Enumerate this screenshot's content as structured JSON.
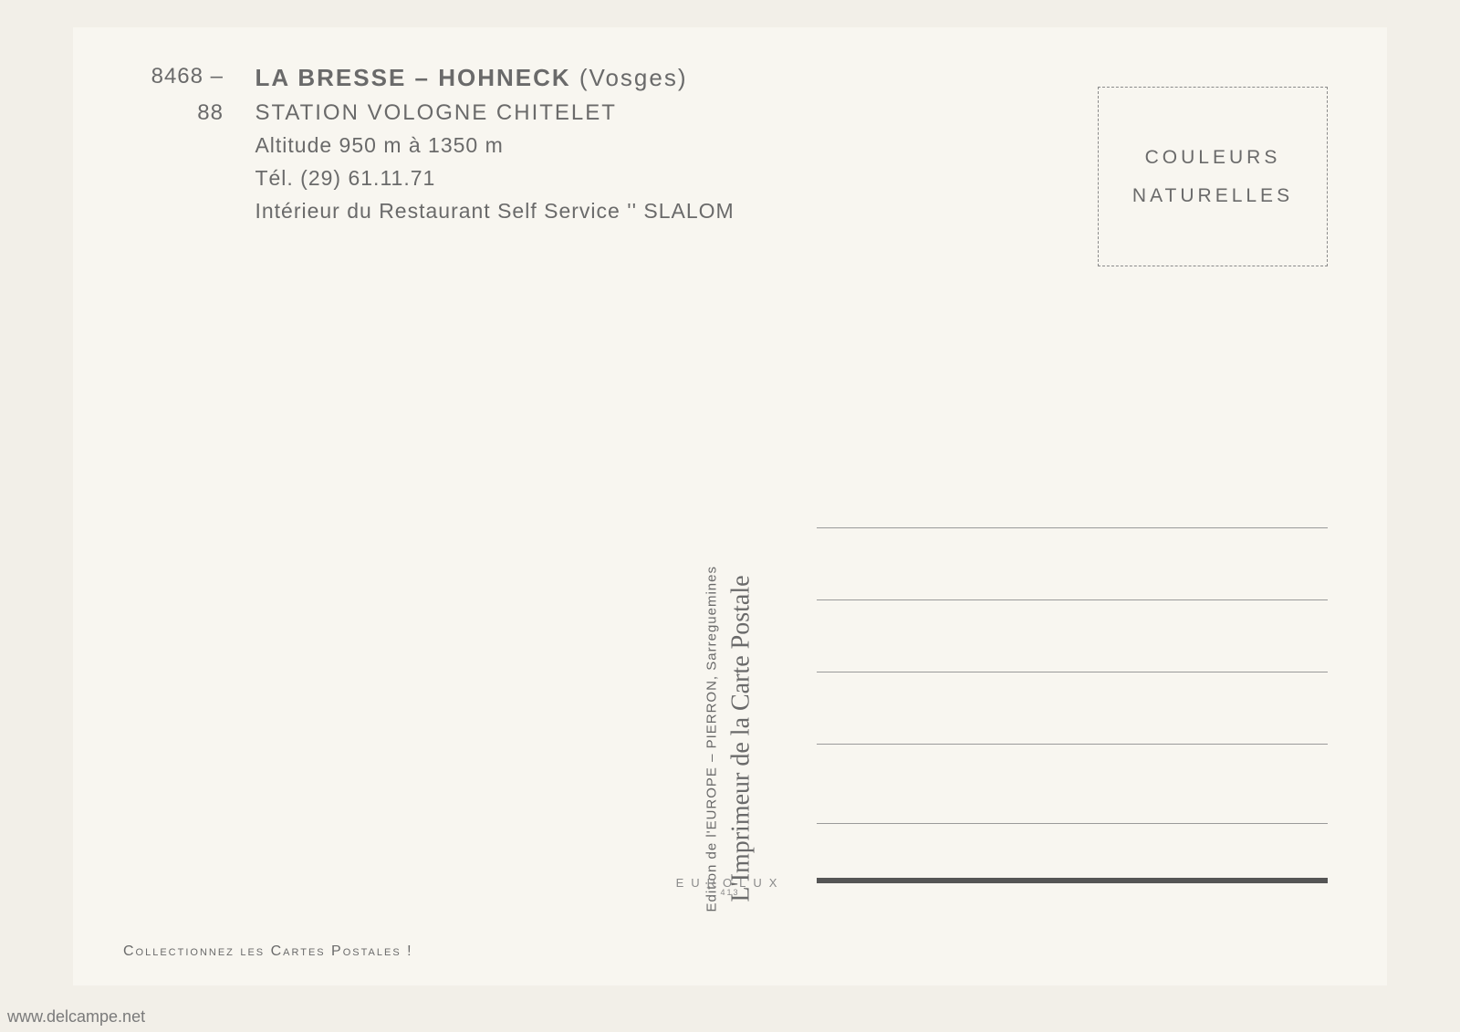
{
  "header": {
    "ref1": "8468 –",
    "ref2": "88",
    "title_bold": "LA BRESSE – HOHNECK",
    "title_paren": "(Vosges)",
    "line2": "STATION VOLOGNE CHITELET",
    "line3": "Altitude 950 m à 1350 m",
    "line4": "Tél. (29) 61.11.71",
    "line5": "Intérieur du Restaurant Self Service '' SLALOM"
  },
  "stamp": {
    "line1": "COULEURS",
    "line2": "NATURELLES"
  },
  "center": {
    "edition": "Edition de l'EUROPE – PIERRON, Sarreguemines",
    "imprimeur": "L'Imprimeur de la Carte Postale"
  },
  "bottom": {
    "brand": "EUROLUX",
    "brand_sub": "413",
    "collect": "Collectionnez les Cartes Postales !"
  },
  "watermark": "www.delcampe.net",
  "colors": {
    "page_bg": "#f2efe8",
    "card_bg": "#f8f6f0",
    "text": "#6a6a6a",
    "line": "#9a9a9a",
    "heavy": "#555555"
  }
}
